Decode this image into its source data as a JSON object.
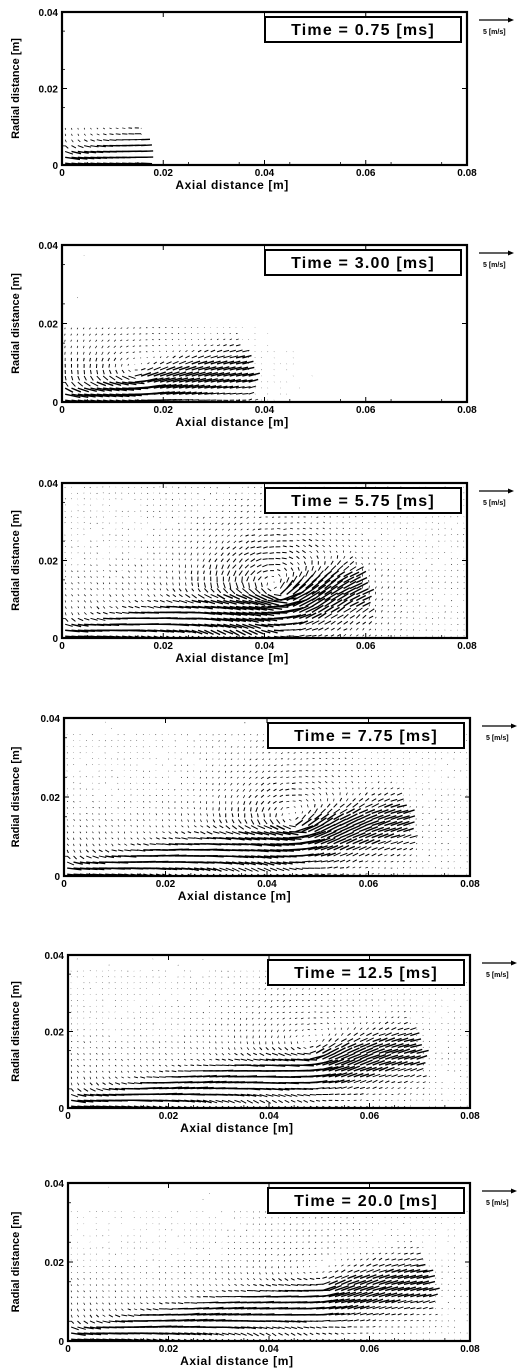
{
  "chart_data": [
    {
      "type": "vector-field",
      "time_label": "Time = 0.75 [ms]",
      "xlabel": "Axial distance [m]",
      "ylabel": "Radial distance [m]",
      "xlim": [
        0,
        0.08
      ],
      "ylim": [
        0,
        0.04
      ],
      "x_ticks": [
        "0",
        "0.02",
        "0.04",
        "0.06",
        "0.08"
      ],
      "y_ticks": [
        "0",
        "0.02",
        "0.04"
      ],
      "x_tick_values": [
        0,
        0.02,
        0.04,
        0.06,
        0.08
      ],
      "y_tick_values": [
        0,
        0.02,
        0.04
      ],
      "reference_vector_label": "5 [m/s]",
      "reference_vector_speed": 5,
      "flow": {
        "tip_x": 0.016,
        "tip_y": 0.003,
        "vortex_x": 0,
        "vortex_y": 0,
        "vortex_strength": 0,
        "spread": 0.1
      }
    },
    {
      "type": "vector-field",
      "time_label": "Time = 3.00 [ms]",
      "xlabel": "Axial distance [m]",
      "ylabel": "Radial distance [m]",
      "xlim": [
        0,
        0.08
      ],
      "ylim": [
        0,
        0.04
      ],
      "x_ticks": [
        "0",
        "0.02",
        "0.04",
        "0.06",
        "0.08"
      ],
      "y_ticks": [
        "0",
        "0.02",
        "0.04"
      ],
      "x_tick_values": [
        0,
        0.02,
        0.04,
        0.06,
        0.08
      ],
      "y_tick_values": [
        0,
        0.02,
        0.04
      ],
      "reference_vector_label": "5 [m/s]",
      "reference_vector_speed": 5,
      "flow": {
        "tip_x": 0.036,
        "tip_y": 0.008,
        "vortex_x": 0.014,
        "vortex_y": 0.006,
        "vortex_strength": 0.4,
        "spread": 0.25
      }
    },
    {
      "type": "vector-field",
      "time_label": "Time = 5.75 [ms]",
      "xlabel": "Axial distance [m]",
      "ylabel": "Radial distance [m]",
      "xlim": [
        0,
        0.08
      ],
      "ylim": [
        0,
        0.04
      ],
      "x_ticks": [
        "0",
        "0.02",
        "0.04",
        "0.06",
        "0.08"
      ],
      "y_ticks": [
        "0",
        "0.02",
        "0.04"
      ],
      "x_tick_values": [
        0,
        0.02,
        0.04,
        0.06,
        0.08
      ],
      "y_tick_values": [
        0,
        0.02,
        0.04
      ],
      "reference_vector_label": "5 [m/s]",
      "reference_vector_speed": 5,
      "flow": {
        "tip_x": 0.058,
        "tip_y": 0.013,
        "vortex_x": 0.042,
        "vortex_y": 0.011,
        "vortex_strength": 1.0,
        "spread": 1.0
      }
    },
    {
      "type": "vector-field",
      "time_label": "Time = 7.75 [ms]",
      "xlabel": "Axial distance [m]",
      "ylabel": "Radial distance [m]",
      "xlim": [
        0,
        0.08
      ],
      "ylim": [
        0,
        0.04
      ],
      "x_ticks": [
        "0",
        "0.02",
        "0.04",
        "0.06",
        "0.08"
      ],
      "y_ticks": [
        "0",
        "0.02",
        "0.04"
      ],
      "x_tick_values": [
        0,
        0.02,
        0.04,
        0.06,
        0.08
      ],
      "y_tick_values": [
        0,
        0.02,
        0.04
      ],
      "reference_vector_label": "5 [m/s]",
      "reference_vector_speed": 5,
      "flow": {
        "tip_x": 0.066,
        "tip_y": 0.014,
        "vortex_x": 0.045,
        "vortex_y": 0.012,
        "vortex_strength": 0.7,
        "spread": 0.85
      }
    },
    {
      "type": "vector-field",
      "time_label": "Time = 12.5 [ms]",
      "xlabel": "Axial distance [m]",
      "ylabel": "Radial distance [m]",
      "xlim": [
        0,
        0.08
      ],
      "ylim": [
        0,
        0.04
      ],
      "x_ticks": [
        "0",
        "0.02",
        "0.04",
        "0.06",
        "0.08"
      ],
      "y_ticks": [
        "0",
        "0.02",
        "0.04"
      ],
      "x_tick_values": [
        0,
        0.02,
        0.04,
        0.06,
        0.08
      ],
      "y_tick_values": [
        0,
        0.02,
        0.04
      ],
      "reference_vector_label": "5 [m/s]",
      "reference_vector_speed": 5,
      "flow": {
        "tip_x": 0.068,
        "tip_y": 0.015,
        "vortex_x": 0.048,
        "vortex_y": 0.013,
        "vortex_strength": 0.45,
        "spread": 0.75
      }
    },
    {
      "type": "vector-field",
      "time_label": "Time = 20.0 [ms]",
      "xlabel": "Axial distance [m]",
      "ylabel": "Radial distance [m]",
      "xlim": [
        0,
        0.08
      ],
      "ylim": [
        0,
        0.04
      ],
      "x_ticks": [
        "0",
        "0.02",
        "0.04",
        "0.06",
        "0.08"
      ],
      "y_ticks": [
        "0",
        "0.02",
        "0.04"
      ],
      "x_tick_values": [
        0,
        0.02,
        0.04,
        0.06,
        0.08
      ],
      "y_tick_values": [
        0,
        0.02,
        0.04
      ],
      "reference_vector_label": "5 [m/s]",
      "reference_vector_speed": 5,
      "flow": {
        "tip_x": 0.07,
        "tip_y": 0.015,
        "vortex_x": 0.05,
        "vortex_y": 0.013,
        "vortex_strength": 0.3,
        "spread": 0.65
      }
    }
  ]
}
